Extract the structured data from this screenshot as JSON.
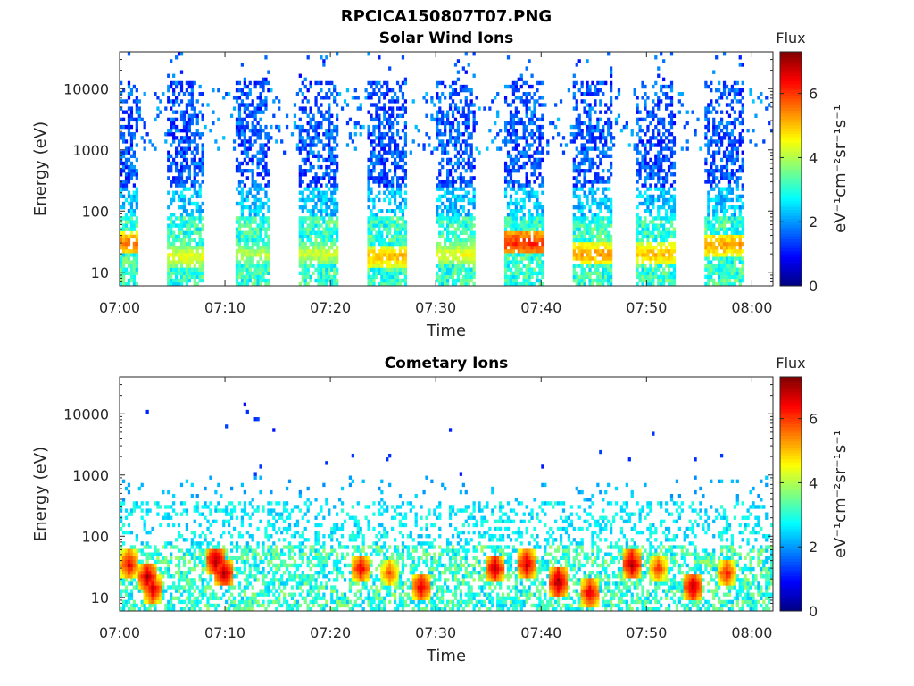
{
  "figure": {
    "title": "RPCICA150807T07.PNG"
  },
  "chart_data": [
    {
      "type": "heatmap",
      "title": "Solar Wind Ions",
      "xlabel": "Time",
      "ylabel": "Energy (eV)",
      "x_tick_labels": [
        "07:00",
        "07:10",
        "07:20",
        "07:30",
        "07:40",
        "07:50",
        "08:00"
      ],
      "x_tick_minutes": [
        0,
        10,
        20,
        30,
        40,
        50,
        60
      ],
      "xlim_minutes": [
        0,
        62
      ],
      "y_scale": "log",
      "y_tick_labels": [
        "10",
        "100",
        "1000",
        "10000"
      ],
      "y_tick_values": [
        10,
        100,
        1000,
        10000
      ],
      "ylim": [
        6,
        40000
      ],
      "colorbar": {
        "title": "Flux",
        "label": "eV⁻¹cm⁻²sr⁻¹s⁻¹",
        "range": [
          0,
          7.3
        ],
        "tick_labels": [
          "0",
          "2",
          "4",
          "6"
        ],
        "tick_values": [
          0,
          2,
          4,
          6
        ],
        "colormap": "jet"
      },
      "sweeps": [
        {
          "start": 0.0,
          "end": 1.5,
          "peak_energy": 30,
          "peak_flux": 5.2
        },
        {
          "start": 4.5,
          "end": 7.8,
          "peak_energy": 18,
          "peak_flux": 4.2
        },
        {
          "start": 10.8,
          "end": 14.0,
          "peak_energy": 20,
          "peak_flux": 3.8
        },
        {
          "start": 17.0,
          "end": 20.5,
          "peak_energy": 20,
          "peak_flux": 4.0
        },
        {
          "start": 23.5,
          "end": 27.0,
          "peak_energy": 18,
          "peak_flux": 4.8
        },
        {
          "start": 30.0,
          "end": 33.5,
          "peak_energy": 20,
          "peak_flux": 4.2
        },
        {
          "start": 36.5,
          "end": 40.0,
          "peak_energy": 30,
          "peak_flux": 5.8
        },
        {
          "start": 43.0,
          "end": 46.5,
          "peak_energy": 20,
          "peak_flux": 5.0
        },
        {
          "start": 49.0,
          "end": 52.5,
          "peak_energy": 20,
          "peak_flux": 4.8
        },
        {
          "start": 55.5,
          "end": 59.0,
          "peak_energy": 28,
          "peak_flux": 5.0
        }
      ]
    },
    {
      "type": "heatmap",
      "title": "Cometary Ions",
      "xlabel": "Time",
      "ylabel": "Energy (eV)",
      "x_tick_labels": [
        "07:00",
        "07:10",
        "07:20",
        "07:30",
        "07:40",
        "07:50",
        "08:00"
      ],
      "x_tick_minutes": [
        0,
        10,
        20,
        30,
        40,
        50,
        60
      ],
      "xlim_minutes": [
        0,
        62
      ],
      "y_scale": "log",
      "y_tick_labels": [
        "10",
        "100",
        "1000",
        "10000"
      ],
      "y_tick_values": [
        10,
        100,
        1000,
        10000
      ],
      "ylim": [
        6,
        40000
      ],
      "colorbar": {
        "title": "Flux",
        "label": "eV⁻¹cm⁻²sr⁻¹s⁻¹",
        "range": [
          0,
          7.3
        ],
        "tick_labels": [
          "0",
          "2",
          "4",
          "6"
        ],
        "tick_values": [
          0,
          2,
          4,
          6
        ],
        "colormap": "jet"
      },
      "bursts": [
        {
          "time": 0.8,
          "energy": 35,
          "flux": 6.5
        },
        {
          "time": 2.5,
          "energy": 22,
          "flux": 6.8
        },
        {
          "time": 3.0,
          "energy": 14,
          "flux": 6.6
        },
        {
          "time": 9.0,
          "energy": 40,
          "flux": 7.0
        },
        {
          "time": 9.8,
          "energy": 25,
          "flux": 6.9
        },
        {
          "time": 22.8,
          "energy": 30,
          "flux": 6.5
        },
        {
          "time": 25.5,
          "energy": 25,
          "flux": 5.8
        },
        {
          "time": 28.5,
          "energy": 15,
          "flux": 6.6
        },
        {
          "time": 35.5,
          "energy": 30,
          "flux": 6.8
        },
        {
          "time": 38.5,
          "energy": 35,
          "flux": 6.7
        },
        {
          "time": 41.5,
          "energy": 18,
          "flux": 7.0
        },
        {
          "time": 44.5,
          "energy": 12,
          "flux": 6.6
        },
        {
          "time": 48.5,
          "energy": 35,
          "flux": 6.9
        },
        {
          "time": 51.0,
          "energy": 30,
          "flux": 6.0
        },
        {
          "time": 54.3,
          "energy": 15,
          "flux": 6.8
        },
        {
          "time": 57.5,
          "energy": 25,
          "flux": 6.2
        }
      ]
    }
  ]
}
